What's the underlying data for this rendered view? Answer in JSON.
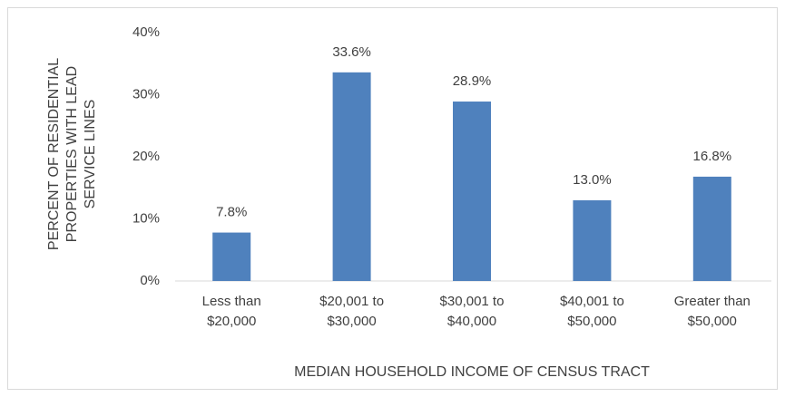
{
  "chart_data": {
    "type": "bar",
    "x_label": "MEDIAN HOUSEHOLD INCOME OF CENSUS TRACT",
    "y_label": "PERCENT OF RESIDENTIAL PROPERTIES WITH LEAD SERVICE LINES",
    "categories": [
      "Less than $20,000",
      "$20,001 to $30,000",
      "$30,001 to $40,000",
      "$40,001 to $50,000",
      "Greater than $50,000"
    ],
    "values": [
      7.8,
      33.6,
      28.9,
      13.0,
      16.8
    ],
    "value_labels": [
      "7.8%",
      "33.6%",
      "28.9%",
      "13.0%",
      "16.8%"
    ],
    "color": "#4f81bd",
    "ylim": [
      0,
      40
    ],
    "yticks": [
      {
        "value": 0,
        "label": "0%"
      },
      {
        "value": 10,
        "label": "10%"
      },
      {
        "value": 20,
        "label": "20%"
      },
      {
        "value": 30,
        "label": "30%"
      },
      {
        "value": 40,
        "label": "40%"
      }
    ],
    "grid": false
  }
}
